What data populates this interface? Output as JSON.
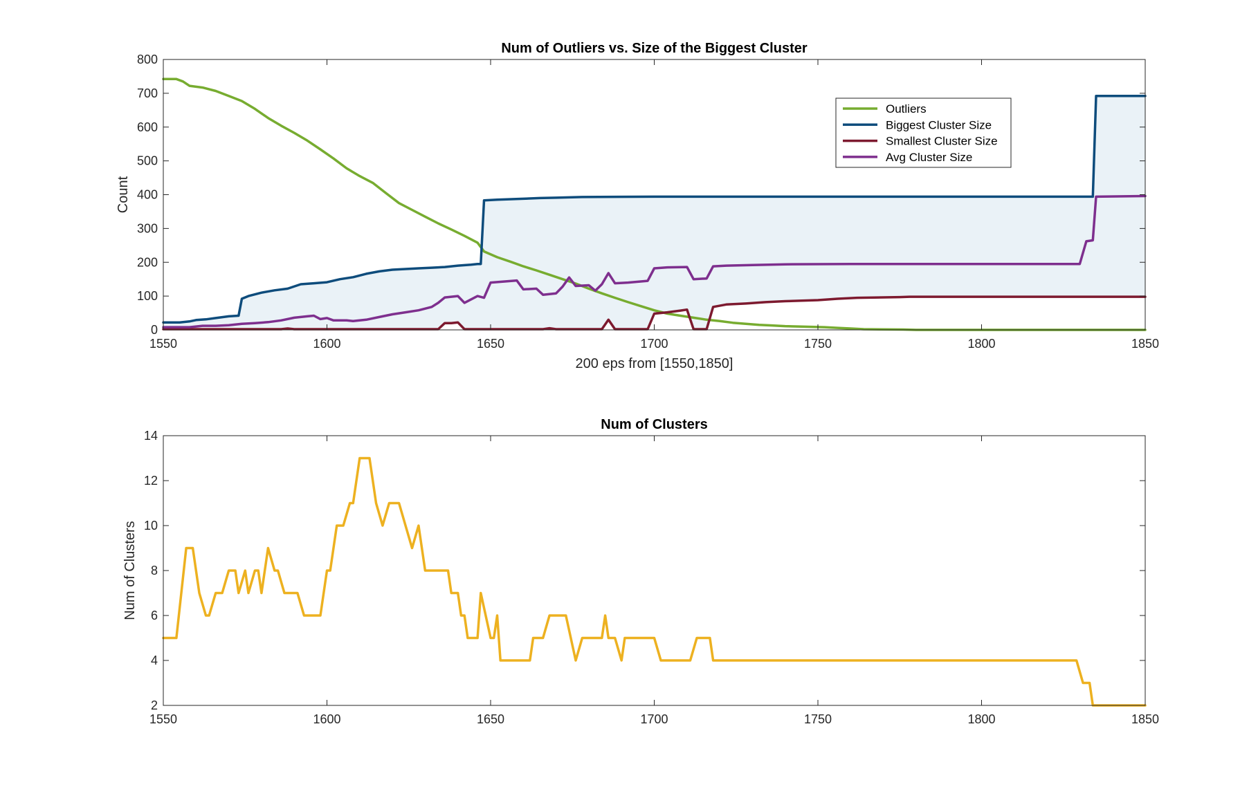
{
  "chart_data": [
    {
      "type": "line",
      "title": "Num of Outliers vs. Size of the Biggest Cluster",
      "xlabel": "200 eps from [1550,1850]",
      "ylabel": "Count",
      "xlim": [
        1550,
        1850
      ],
      "ylim": [
        0,
        800
      ],
      "xticks": [
        1550,
        1600,
        1650,
        1700,
        1750,
        1800,
        1850
      ],
      "yticks": [
        0,
        100,
        200,
        300,
        400,
        500,
        600,
        700,
        800
      ],
      "grid": false,
      "legend_position": "top-right",
      "shaded_region": {
        "between": [
          "Biggest Cluster Size",
          "Smallest Cluster Size"
        ],
        "color": "#eaf2f7"
      },
      "series": [
        {
          "name": "Outliers",
          "color": "#77ac30",
          "points": [
            [
              1550,
              742
            ],
            [
              1554,
              742
            ],
            [
              1556,
              735
            ],
            [
              1558,
              722
            ],
            [
              1562,
              717
            ],
            [
              1566,
              707
            ],
            [
              1570,
              692
            ],
            [
              1574,
              677
            ],
            [
              1578,
              654
            ],
            [
              1582,
              627
            ],
            [
              1586,
              604
            ],
            [
              1590,
              583
            ],
            [
              1594,
              560
            ],
            [
              1598,
              534
            ],
            [
              1602,
              507
            ],
            [
              1606,
              478
            ],
            [
              1610,
              455
            ],
            [
              1614,
              435
            ],
            [
              1618,
              405
            ],
            [
              1622,
              375
            ],
            [
              1626,
              355
            ],
            [
              1630,
              335
            ],
            [
              1634,
              315
            ],
            [
              1638,
              297
            ],
            [
              1642,
              278
            ],
            [
              1646,
              258
            ],
            [
              1648,
              232
            ],
            [
              1652,
              215
            ],
            [
              1656,
              202
            ],
            [
              1660,
              188
            ],
            [
              1664,
              176
            ],
            [
              1668,
              163
            ],
            [
              1672,
              150
            ],
            [
              1676,
              137
            ],
            [
              1680,
              122
            ],
            [
              1684,
              108
            ],
            [
              1688,
              95
            ],
            [
              1692,
              82
            ],
            [
              1696,
              70
            ],
            [
              1700,
              58
            ],
            [
              1704,
              48
            ],
            [
              1708,
              42
            ],
            [
              1712,
              36
            ],
            [
              1716,
              30
            ],
            [
              1720,
              26
            ],
            [
              1724,
              21
            ],
            [
              1728,
              18
            ],
            [
              1732,
              15
            ],
            [
              1736,
              13
            ],
            [
              1740,
              11
            ],
            [
              1744,
              10
            ],
            [
              1748,
              9
            ],
            [
              1752,
              8
            ],
            [
              1756,
              6
            ],
            [
              1760,
              4
            ],
            [
              1764,
              2
            ],
            [
              1776,
              1
            ],
            [
              1780,
              0
            ],
            [
              1850,
              0
            ]
          ]
        },
        {
          "name": "Biggest Cluster Size",
          "color": "#0e4c7c",
          "points": [
            [
              1550,
              22
            ],
            [
              1555,
              22
            ],
            [
              1558,
              25
            ],
            [
              1560,
              29
            ],
            [
              1563,
              31
            ],
            [
              1566,
              35
            ],
            [
              1570,
              40
            ],
            [
              1573,
              42
            ],
            [
              1574,
              92
            ],
            [
              1576,
              100
            ],
            [
              1580,
              110
            ],
            [
              1584,
              117
            ],
            [
              1588,
              122
            ],
            [
              1592,
              135
            ],
            [
              1596,
              138
            ],
            [
              1600,
              141
            ],
            [
              1604,
              150
            ],
            [
              1608,
              156
            ],
            [
              1612,
              166
            ],
            [
              1616,
              173
            ],
            [
              1620,
              178
            ],
            [
              1624,
              180
            ],
            [
              1628,
              182
            ],
            [
              1632,
              184
            ],
            [
              1636,
              186
            ],
            [
              1640,
              190
            ],
            [
              1644,
              193
            ],
            [
              1646,
              195
            ],
            [
              1647,
              195
            ],
            [
              1648,
              383
            ],
            [
              1652,
              385
            ],
            [
              1660,
              388
            ],
            [
              1665,
              390
            ],
            [
              1670,
              391
            ],
            [
              1678,
              393
            ],
            [
              1700,
              394
            ],
            [
              1834,
              394
            ],
            [
              1835,
              692
            ],
            [
              1850,
              692
            ]
          ]
        },
        {
          "name": "Smallest Cluster Size",
          "color": "#7d1a2f",
          "points": [
            [
              1550,
              2
            ],
            [
              1586,
              2
            ],
            [
              1588,
              4
            ],
            [
              1590,
              2
            ],
            [
              1634,
              2
            ],
            [
              1636,
              20
            ],
            [
              1638,
              20
            ],
            [
              1640,
              22
            ],
            [
              1642,
              2
            ],
            [
              1666,
              2
            ],
            [
              1668,
              5
            ],
            [
              1670,
              2
            ],
            [
              1684,
              2
            ],
            [
              1686,
              30
            ],
            [
              1688,
              2
            ],
            [
              1698,
              2
            ],
            [
              1700,
              48
            ],
            [
              1704,
              52
            ],
            [
              1708,
              57
            ],
            [
              1710,
              60
            ],
            [
              1712,
              2
            ],
            [
              1716,
              2
            ],
            [
              1718,
              68
            ],
            [
              1722,
              75
            ],
            [
              1728,
              78
            ],
            [
              1734,
              82
            ],
            [
              1740,
              85
            ],
            [
              1750,
              88
            ],
            [
              1756,
              92
            ],
            [
              1762,
              95
            ],
            [
              1775,
              97
            ],
            [
              1778,
              98
            ],
            [
              1850,
              98
            ]
          ]
        },
        {
          "name": "Avg Cluster Size",
          "color": "#7e2f8e",
          "points": [
            [
              1550,
              8
            ],
            [
              1558,
              8
            ],
            [
              1562,
              12
            ],
            [
              1566,
              12
            ],
            [
              1570,
              14
            ],
            [
              1574,
              18
            ],
            [
              1578,
              20
            ],
            [
              1582,
              23
            ],
            [
              1586,
              28
            ],
            [
              1590,
              36
            ],
            [
              1594,
              40
            ],
            [
              1596,
              42
            ],
            [
              1598,
              32
            ],
            [
              1600,
              35
            ],
            [
              1602,
              28
            ],
            [
              1606,
              28
            ],
            [
              1608,
              26
            ],
            [
              1612,
              30
            ],
            [
              1616,
              38
            ],
            [
              1620,
              46
            ],
            [
              1624,
              52
            ],
            [
              1628,
              58
            ],
            [
              1632,
              68
            ],
            [
              1634,
              80
            ],
            [
              1636,
              96
            ],
            [
              1640,
              100
            ],
            [
              1642,
              80
            ],
            [
              1646,
              100
            ],
            [
              1648,
              95
            ],
            [
              1650,
              140
            ],
            [
              1658,
              146
            ],
            [
              1660,
              120
            ],
            [
              1664,
              122
            ],
            [
              1666,
              104
            ],
            [
              1670,
              108
            ],
            [
              1672,
              128
            ],
            [
              1674,
              155
            ],
            [
              1676,
              130
            ],
            [
              1680,
              132
            ],
            [
              1682,
              116
            ],
            [
              1684,
              135
            ],
            [
              1686,
              168
            ],
            [
              1688,
              138
            ],
            [
              1692,
              140
            ],
            [
              1698,
              145
            ],
            [
              1700,
              182
            ],
            [
              1704,
              185
            ],
            [
              1710,
              186
            ],
            [
              1712,
              150
            ],
            [
              1716,
              152
            ],
            [
              1718,
              188
            ],
            [
              1722,
              190
            ],
            [
              1730,
              192
            ],
            [
              1740,
              194
            ],
            [
              1760,
              195
            ],
            [
              1800,
              195
            ],
            [
              1830,
              195
            ],
            [
              1832,
              262
            ],
            [
              1834,
              265
            ],
            [
              1835,
              394
            ],
            [
              1850,
              396
            ]
          ]
        }
      ]
    },
    {
      "type": "line",
      "title": "Num of Clusters",
      "xlabel": "",
      "ylabel": "Num of Clusters",
      "xlim": [
        1550,
        1850
      ],
      "ylim": [
        2,
        14
      ],
      "xticks": [
        1550,
        1600,
        1650,
        1700,
        1750,
        1800,
        1850
      ],
      "yticks": [
        2,
        4,
        6,
        8,
        10,
        12,
        14
      ],
      "grid": false,
      "series": [
        {
          "color": "#edb120",
          "points": [
            [
              1550,
              5
            ],
            [
              1554,
              5
            ],
            [
              1557,
              9
            ],
            [
              1559,
              9
            ],
            [
              1561,
              7
            ],
            [
              1563,
              6
            ],
            [
              1564,
              6
            ],
            [
              1566,
              7
            ],
            [
              1568,
              7
            ],
            [
              1570,
              8
            ],
            [
              1572,
              8
            ],
            [
              1573,
              7
            ],
            [
              1575,
              8
            ],
            [
              1576,
              7
            ],
            [
              1578,
              8
            ],
            [
              1579,
              8
            ],
            [
              1580,
              7
            ],
            [
              1582,
              9
            ],
            [
              1584,
              8
            ],
            [
              1585,
              8
            ],
            [
              1587,
              7
            ],
            [
              1591,
              7
            ],
            [
              1593,
              6
            ],
            [
              1598,
              6
            ],
            [
              1600,
              8
            ],
            [
              1601,
              8
            ],
            [
              1603,
              10
            ],
            [
              1605,
              10
            ],
            [
              1607,
              11
            ],
            [
              1608,
              11
            ],
            [
              1610,
              13
            ],
            [
              1613,
              13
            ],
            [
              1615,
              11
            ],
            [
              1617,
              10
            ],
            [
              1619,
              11
            ],
            [
              1622,
              11
            ],
            [
              1626,
              9
            ],
            [
              1628,
              10
            ],
            [
              1630,
              8
            ],
            [
              1637,
              8
            ],
            [
              1638,
              7
            ],
            [
              1640,
              7
            ],
            [
              1641,
              6
            ],
            [
              1642,
              6
            ],
            [
              1643,
              5
            ],
            [
              1646,
              5
            ],
            [
              1647,
              7
            ],
            [
              1650,
              5
            ],
            [
              1651,
              5
            ],
            [
              1652,
              6
            ],
            [
              1653,
              4
            ],
            [
              1662,
              4
            ],
            [
              1663,
              5
            ],
            [
              1666,
              5
            ],
            [
              1668,
              6
            ],
            [
              1673,
              6
            ],
            [
              1676,
              4
            ],
            [
              1678,
              5
            ],
            [
              1684,
              5
            ],
            [
              1685,
              6
            ],
            [
              1686,
              5
            ],
            [
              1688,
              5
            ],
            [
              1690,
              4
            ],
            [
              1691,
              5
            ],
            [
              1700,
              5
            ],
            [
              1702,
              4
            ],
            [
              1711,
              4
            ],
            [
              1713,
              5
            ],
            [
              1717,
              5
            ],
            [
              1718,
              4
            ],
            [
              1829,
              4
            ],
            [
              1831,
              3
            ],
            [
              1833,
              3
            ],
            [
              1834,
              2
            ],
            [
              1850,
              2
            ]
          ]
        }
      ]
    }
  ]
}
